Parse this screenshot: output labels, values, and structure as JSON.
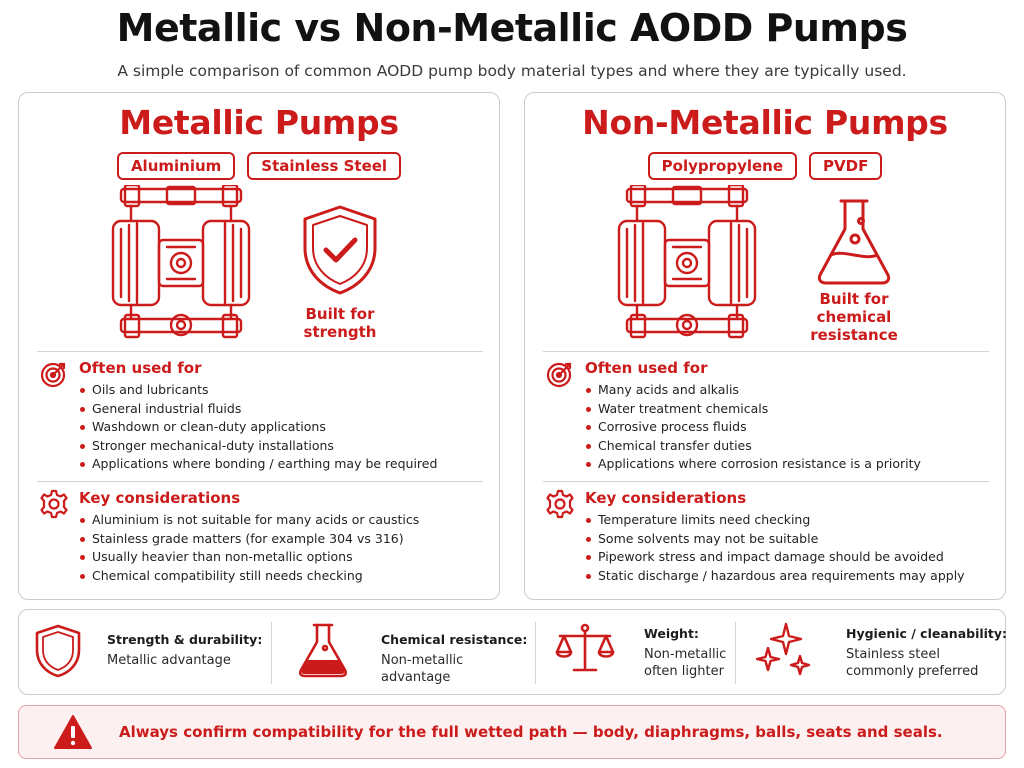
{
  "title": "Metallic vs Non-Metallic AODD Pumps",
  "subtitle": "A simple comparison of common AODD pump body material types and where they are typically used.",
  "colors": {
    "accent": "#cc1b1b",
    "border": "#cdcdcd",
    "alert_bg": "#fdf0f0"
  },
  "metallic": {
    "title": "Metallic Pumps",
    "chips": [
      "Aluminium",
      "Stainless Steel"
    ],
    "side_icon": "shield-check-icon",
    "side_caption": [
      "Built for",
      "strength"
    ],
    "used_for": {
      "title": "Often used for",
      "icon": "target-icon",
      "items": [
        "Oils and lubricants",
        "General industrial fluids",
        "Washdown or clean-duty applications",
        "Stronger mechanical-duty installations",
        "Applications where bonding / earthing may be required"
      ]
    },
    "considerations": {
      "title": "Key considerations",
      "icon": "gear-icon",
      "items": [
        "Aluminium is not suitable for many acids or caustics",
        "Stainless grade matters (for example 304 vs 316)",
        "Usually heavier than non-metallic options",
        "Chemical compatibility still needs checking"
      ]
    }
  },
  "nonmetallic": {
    "title": "Non-Metallic Pumps",
    "chips": [
      "Polypropylene",
      "PVDF"
    ],
    "side_icon": "flask-icon",
    "side_caption": [
      "Built for",
      "chemical",
      "resistance"
    ],
    "used_for": {
      "title": "Often used for",
      "icon": "target-icon",
      "items": [
        "Many acids and alkalis",
        "Water treatment chemicals",
        "Corrosive process fluids",
        "Chemical transfer duties",
        "Applications where corrosion resistance is a priority"
      ]
    },
    "considerations": {
      "title": "Key considerations",
      "icon": "gear-icon",
      "items": [
        "Temperature limits need checking",
        "Some solvents may not be suitable",
        "Pipework stress and impact damage should be avoided",
        "Static discharge / hazardous area requirements may apply"
      ]
    }
  },
  "summary": [
    {
      "icon": "shield-icon",
      "title": "Strength & durability:",
      "lines": [
        "Metallic advantage"
      ]
    },
    {
      "icon": "beaker-icon",
      "title": "Chemical resistance:",
      "lines": [
        "Non-metallic advantage"
      ]
    },
    {
      "icon": "scale-icon",
      "title": "Weight:",
      "lines": [
        "Non-metallic",
        "often lighter"
      ]
    },
    {
      "icon": "sparkle-icon",
      "title": "Hygienic / cleanability:",
      "lines": [
        "Stainless steel",
        "commonly preferred"
      ]
    }
  ],
  "alert": {
    "icon": "warning-icon",
    "text": "Always confirm compatibility for the full wetted path — body, diaphragms, balls, seats and seals."
  }
}
